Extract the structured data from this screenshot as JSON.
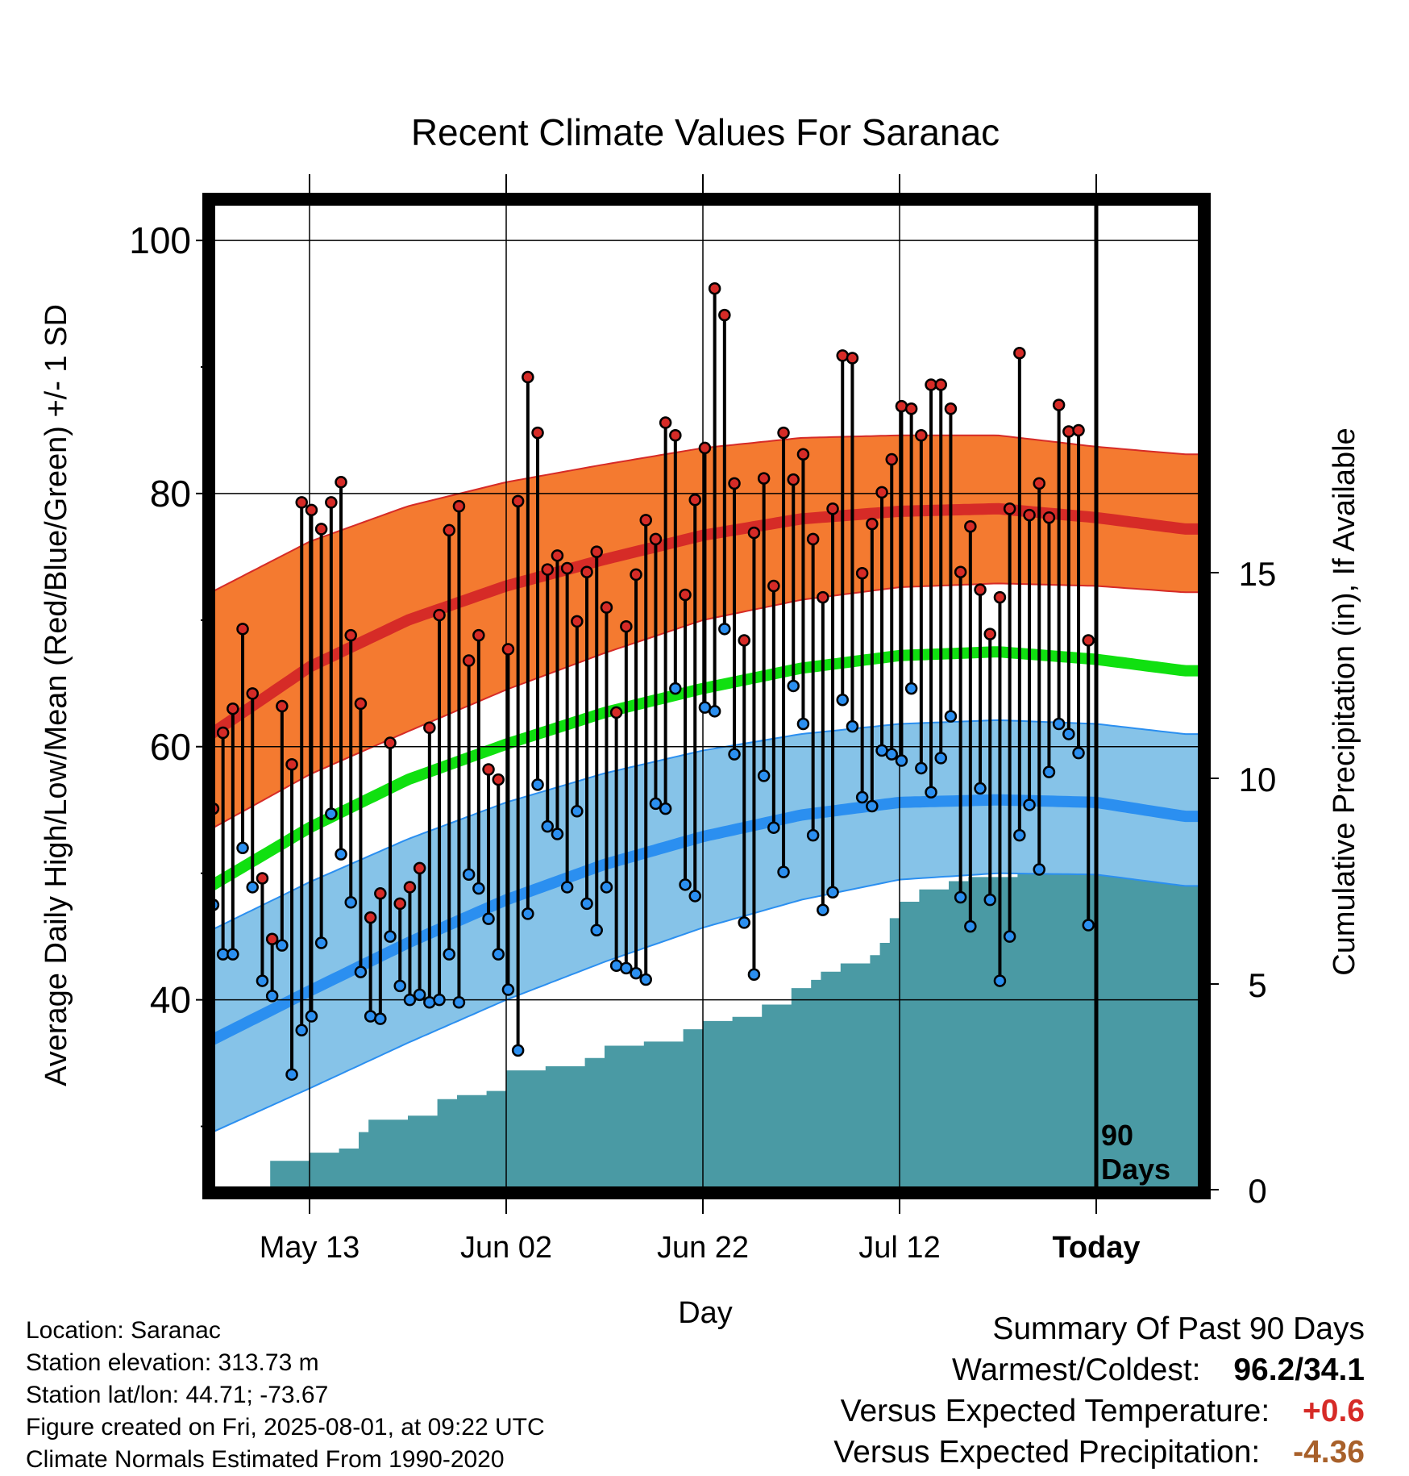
{
  "chart_data": {
    "type": "line",
    "title": "Recent Climate Values For Saranac",
    "xlabel": "Day",
    "ylabel": "Average Daily High/Low/Mean (Red/Blue/Green) +/- 1 SD",
    "y2label": "Cumulative Precipitation (in), If Available",
    "ylim": [
      25,
      103
    ],
    "y2lim": [
      0,
      24
    ],
    "y_ticks": [
      100,
      80,
      60,
      40
    ],
    "y2_ticks": [
      0,
      5,
      10,
      15
    ],
    "x_ticks": [
      {
        "day": -80,
        "label": "May 13"
      },
      {
        "day": -60,
        "label": "Jun 02"
      },
      {
        "day": -40,
        "label": "Jun 22"
      },
      {
        "day": -20,
        "label": "Jul 12"
      },
      {
        "day": 0,
        "label": "Today"
      }
    ],
    "today_label": "90\nDays",
    "colors": {
      "high_band": "#f47a30",
      "high_line": "#d62b27",
      "low_band": "#86c3e8",
      "low_line": "#2b8ff0",
      "mean_line": "#10e010",
      "precip": "#4a9aa4",
      "high_point": "#d62b27",
      "low_point": "#2b8ff0"
    },
    "normals": {
      "days": [
        -90,
        -80,
        -70,
        -60,
        -50,
        -40,
        -30,
        -20,
        -10,
        0,
        9
      ],
      "high_mean": [
        61.0,
        66.3,
        70.0,
        72.7,
        74.8,
        76.7,
        78.0,
        78.6,
        78.8,
        78.1,
        77.2
      ],
      "high_upper": [
        72.2,
        76.2,
        79.0,
        80.9,
        82.3,
        83.6,
        84.4,
        84.6,
        84.6,
        83.7,
        83.1
      ],
      "high_lower": [
        53.5,
        57.8,
        61.2,
        64.5,
        67.4,
        70.0,
        71.6,
        72.6,
        72.9,
        72.7,
        72.2
      ],
      "mean": [
        49.0,
        53.6,
        57.4,
        60.2,
        62.7,
        64.6,
        66.2,
        67.2,
        67.5,
        66.9,
        66.0
      ],
      "low_mean": [
        36.8,
        40.7,
        44.5,
        47.9,
        50.7,
        52.9,
        54.6,
        55.6,
        55.8,
        55.6,
        54.5
      ],
      "low_upper": [
        45.5,
        49.3,
        52.7,
        55.6,
        57.9,
        59.7,
        61.0,
        61.8,
        62.1,
        61.8,
        61.0
      ],
      "low_lower": [
        29.5,
        33.0,
        36.6,
        40.0,
        43.0,
        45.7,
        47.9,
        49.5,
        50.0,
        49.9,
        49.0
      ]
    },
    "series": [
      {
        "name": "High",
        "values": [
          55.1,
          61.1,
          63.0,
          69.3,
          64.2,
          49.6,
          44.8,
          63.2,
          58.6,
          79.3,
          78.7,
          77.2,
          79.3,
          80.9,
          68.8,
          63.4,
          46.5,
          48.4,
          60.3,
          47.6,
          48.9,
          50.4,
          61.5,
          70.4,
          77.1,
          79.0,
          66.8,
          68.8,
          58.2,
          57.4,
          67.7,
          79.4,
          89.2,
          84.8,
          74.0,
          75.1,
          74.1,
          69.9,
          73.8,
          75.4,
          71.0,
          62.7,
          69.5,
          73.6,
          77.9,
          76.4,
          85.6,
          84.6,
          72.0,
          79.5,
          83.6,
          96.2,
          94.1,
          80.8,
          68.4,
          76.9,
          81.2,
          72.7,
          84.8,
          81.1,
          83.1,
          76.4,
          71.8,
          78.8,
          90.9,
          90.7,
          73.7,
          77.6,
          80.1,
          82.7,
          86.9,
          86.7,
          84.6,
          88.6,
          88.6,
          86.7,
          73.8,
          77.4,
          72.4,
          68.9,
          71.8,
          78.8,
          91.1,
          78.3,
          80.8,
          78.1,
          87.0,
          84.9,
          85.0,
          68.4
        ]
      },
      {
        "name": "Low",
        "values": [
          47.5,
          43.6,
          43.6,
          52.0,
          48.9,
          41.5,
          40.3,
          44.3,
          34.1,
          37.6,
          38.7,
          44.5,
          54.7,
          51.5,
          47.7,
          42.2,
          38.7,
          38.5,
          45.0,
          41.1,
          40.0,
          40.4,
          39.8,
          40.0,
          43.6,
          39.8,
          49.9,
          48.8,
          46.4,
          43.6,
          40.8,
          36.0,
          46.8,
          57.0,
          53.7,
          53.1,
          48.9,
          54.9,
          47.6,
          45.5,
          48.9,
          42.7,
          42.5,
          42.1,
          41.6,
          55.5,
          55.1,
          64.6,
          49.1,
          48.2,
          63.1,
          62.8,
          69.3,
          59.4,
          46.1,
          42.0,
          57.7,
          53.6,
          50.1,
          64.8,
          61.8,
          53.0,
          47.1,
          48.5,
          63.7,
          61.6,
          56.0,
          55.3,
          59.7,
          59.4,
          58.9,
          64.6,
          58.3,
          56.4,
          59.1,
          62.4,
          48.1,
          45.8,
          56.7,
          47.9,
          41.5,
          45.0,
          53.0,
          55.4,
          50.3,
          58.0,
          61.8,
          61.0,
          59.5,
          45.9
        ]
      },
      {
        "name": "Precipitation",
        "days": [
          -90,
          -85,
          -84,
          -80,
          -77,
          -75,
          -74,
          -70,
          -67,
          -65,
          -62,
          -60,
          -56,
          -52,
          -50,
          -46,
          -42,
          -40,
          -37,
          -34,
          -31,
          -29,
          -28,
          -26,
          -23,
          -22,
          -21,
          -20,
          -18,
          -17,
          -15,
          -13,
          -10,
          -8,
          -6,
          -5,
          -4,
          -3,
          0
        ],
        "values": [
          0.0,
          0.0,
          0.7,
          0.9,
          1.0,
          1.4,
          1.7,
          1.8,
          2.2,
          2.3,
          2.4,
          2.9,
          3.0,
          3.2,
          3.5,
          3.6,
          3.9,
          4.1,
          4.2,
          4.5,
          4.9,
          5.1,
          5.3,
          5.5,
          5.7,
          6.0,
          6.6,
          7.0,
          7.3,
          7.3,
          7.5,
          7.6,
          7.6,
          7.7,
          7.7,
          7.8,
          7.8,
          7.9,
          8.0
        ]
      }
    ]
  },
  "station": {
    "location": "Location: Saranac",
    "elevation": "Station elevation: 313.73 m",
    "latlon": "Station lat/lon: 44.71; -73.67",
    "created": "Figure created on Fri, 2025-08-01, at 09:22 UTC",
    "normals": "Climate Normals Estimated From 1990-2020"
  },
  "summary": {
    "heading": "Summary Of Past 90 Days",
    "warm_cold_label": "Warmest/Coldest:",
    "warm_cold_value": "96.2/34.1",
    "temp_label": "Versus Expected Temperature:",
    "temp_value": "+0.6",
    "temp_color": "#d62b27",
    "precip_label": "Versus Expected Precipitation:",
    "precip_value": "-4.36",
    "precip_color": "#a8602a"
  }
}
